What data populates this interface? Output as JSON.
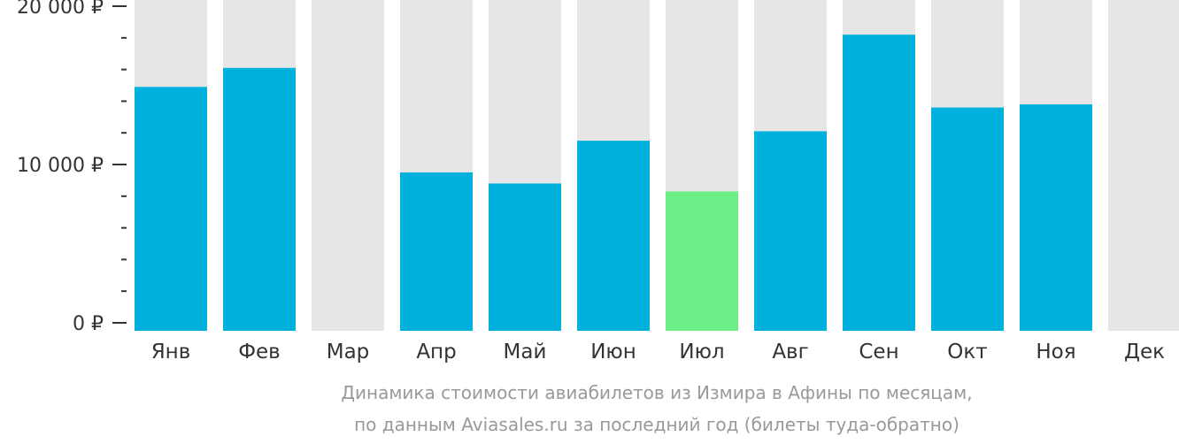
{
  "chart_data": {
    "type": "bar",
    "categories": [
      "Янв",
      "Фев",
      "Мар",
      "Апр",
      "Май",
      "Июн",
      "Июл",
      "Авг",
      "Сен",
      "Окт",
      "Ноя",
      "Дек"
    ],
    "values": [
      14900,
      16100,
      null,
      9500,
      8800,
      11500,
      8300,
      12100,
      18200,
      13600,
      13800,
      null
    ],
    "highlight_index": 6,
    "ylim": [
      0,
      20000
    ],
    "yticks": [
      {
        "value": 0,
        "label": "0 ₽"
      },
      {
        "value": 10000,
        "label": "10 000 ₽"
      },
      {
        "value": 20000,
        "label": "20 000 ₽"
      }
    ],
    "minor_tick_step": 2000,
    "colors": {
      "bar": "#00b0dd",
      "highlight": "#6def87",
      "background_column": "#e6e6e6",
      "axis": "#333333"
    }
  },
  "caption": {
    "line1": "Динамика стоимости авиабилетов из Измира в Афины по месяцам,",
    "line2": "по данным Aviasales.ru за последний год (билеты туда-обратно)"
  }
}
